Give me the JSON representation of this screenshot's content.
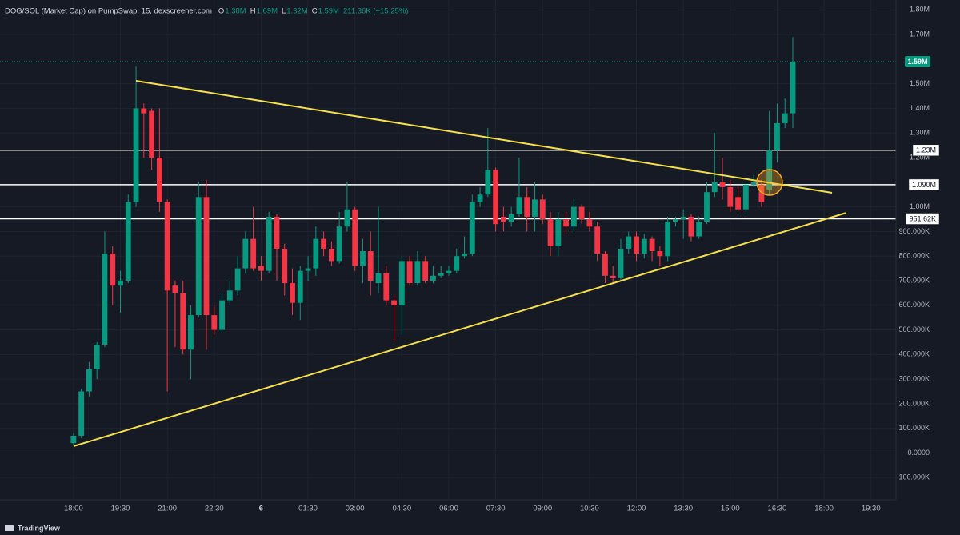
{
  "chart_data": {
    "type": "candlestick",
    "title": "DOG/SOL (Market Cap) on PumpSwap, 15, dexscreener.com",
    "ohlc_labels": [
      {
        "key": "O",
        "value": "1.38M"
      },
      {
        "key": "H",
        "value": "1.69M"
      },
      {
        "key": "L",
        "value": "1.32M"
      },
      {
        "key": "C",
        "value": "1.59M"
      }
    ],
    "change": "211.36K (+15.25%)",
    "up_color": "#089981",
    "down_color": "#f23645",
    "open": [
      40000,
      70000,
      250000,
      340000,
      440000,
      810000,
      680000,
      700000,
      1020000,
      1400000,
      1390000,
      1200000,
      1020000,
      680000,
      650000,
      420000,
      560000,
      1040000,
      560000,
      500000,
      620000,
      660000,
      750000,
      870000,
      760000,
      740000,
      960000,
      830000,
      690000,
      610000,
      740000,
      750000,
      870000,
      830000,
      780000,
      920000,
      990000,
      760000,
      820000,
      690000,
      730000,
      620000,
      600000,
      780000,
      690000,
      780000,
      700000,
      720000,
      730000,
      740000,
      800000,
      810000,
      1020000,
      1050000,
      1150000,
      960000,
      940000,
      970000,
      1040000,
      960000,
      1030000,
      950000,
      840000,
      950000,
      920000,
      1000000,
      950000,
      920000,
      810000,
      720000,
      710000,
      830000,
      880000,
      810000,
      870000,
      820000,
      800000,
      940000,
      950000,
      960000,
      880000,
      940000,
      1060000,
      1100000,
      1080000,
      1040000,
      990000,
      1090000,
      1090000,
      1070000,
      1230000,
      1340000,
      1380000
    ],
    "high": [
      80000,
      260000,
      370000,
      450000,
      900000,
      840000,
      740000,
      1050000,
      1570000,
      1420000,
      1400000,
      1400000,
      1030000,
      700000,
      700000,
      600000,
      1100000,
      1110000,
      600000,
      650000,
      700000,
      800000,
      900000,
      1000000,
      800000,
      980000,
      970000,
      850000,
      750000,
      760000,
      800000,
      920000,
      900000,
      860000,
      980000,
      1100000,
      1000000,
      870000,
      900000,
      1000000,
      760000,
      640000,
      800000,
      800000,
      820000,
      800000,
      760000,
      760000,
      760000,
      830000,
      880000,
      1050000,
      1080000,
      1320000,
      1160000,
      1000000,
      1000000,
      1200000,
      1080000,
      1100000,
      1050000,
      980000,
      980000,
      980000,
      1030000,
      1010000,
      980000,
      940000,
      820000,
      760000,
      870000,
      900000,
      900000,
      890000,
      880000,
      840000,
      960000,
      960000,
      990000,
      970000,
      960000,
      1100000,
      1300000,
      1200000,
      1110000,
      1080000,
      1100000,
      1130000,
      1110000,
      1390000,
      1420000,
      1440000,
      1690000
    ],
    "low": [
      30000,
      60000,
      230000,
      300000,
      430000,
      600000,
      570000,
      690000,
      1000000,
      1200000,
      1150000,
      980000,
      250000,
      430000,
      400000,
      300000,
      550000,
      420000,
      480000,
      490000,
      600000,
      640000,
      730000,
      740000,
      700000,
      730000,
      700000,
      640000,
      560000,
      540000,
      700000,
      720000,
      800000,
      760000,
      770000,
      900000,
      740000,
      690000,
      640000,
      650000,
      600000,
      450000,
      480000,
      680000,
      680000,
      690000,
      690000,
      710000,
      720000,
      730000,
      790000,
      800000,
      1000000,
      1040000,
      900000,
      900000,
      920000,
      960000,
      900000,
      900000,
      930000,
      800000,
      800000,
      890000,
      900000,
      930000,
      900000,
      780000,
      690000,
      690000,
      700000,
      810000,
      780000,
      790000,
      780000,
      760000,
      780000,
      920000,
      870000,
      860000,
      870000,
      930000,
      1040000,
      1030000,
      980000,
      980000,
      970000,
      1080000,
      1000000,
      1050000,
      1180000,
      1320000,
      1320000
    ],
    "close": [
      70000,
      250000,
      340000,
      440000,
      810000,
      680000,
      700000,
      1020000,
      1400000,
      1380000,
      1200000,
      1020000,
      660000,
      650000,
      420000,
      560000,
      1040000,
      560000,
      500000,
      620000,
      660000,
      750000,
      870000,
      750000,
      740000,
      960000,
      830000,
      690000,
      610000,
      740000,
      750000,
      870000,
      830000,
      780000,
      920000,
      990000,
      760000,
      820000,
      700000,
      730000,
      620000,
      600000,
      780000,
      690000,
      780000,
      700000,
      720000,
      730000,
      740000,
      800000,
      810000,
      1020000,
      1050000,
      1150000,
      930000,
      940000,
      970000,
      1040000,
      960000,
      1030000,
      950000,
      840000,
      950000,
      920000,
      1000000,
      950000,
      920000,
      810000,
      720000,
      710000,
      830000,
      880000,
      810000,
      870000,
      820000,
      800000,
      940000,
      950000,
      960000,
      880000,
      940000,
      1060000,
      1100000,
      1080000,
      1000000,
      990000,
      1090000,
      1100000,
      1020000,
      1230000,
      1340000,
      1380000,
      1590000
    ],
    "xlim": [
      -9.4,
      105.2
    ],
    "xticks": [
      {
        "value": 0,
        "label": "18:00"
      },
      {
        "value": 6,
        "label": "19:30"
      },
      {
        "value": 12,
        "label": "21:00"
      },
      {
        "value": 18,
        "label": "22:30"
      },
      {
        "value": 24,
        "label": "6"
      },
      {
        "value": 30,
        "label": "01:30"
      },
      {
        "value": 36,
        "label": "03:00"
      },
      {
        "value": 42,
        "label": "04:30"
      },
      {
        "value": 48,
        "label": "06:00"
      },
      {
        "value": 54,
        "label": "07:30"
      },
      {
        "value": 60,
        "label": "09:00"
      },
      {
        "value": 66,
        "label": "10:30"
      },
      {
        "value": 72,
        "label": "12:00"
      },
      {
        "value": 78,
        "label": "13:30"
      },
      {
        "value": 84,
        "label": "15:00"
      },
      {
        "value": 90,
        "label": "16:30"
      },
      {
        "value": 96,
        "label": "18:00"
      },
      {
        "value": 102,
        "label": "19:30"
      }
    ],
    "ylim": [
      -190000,
      1840000
    ],
    "yticks": [
      {
        "value": 1800000,
        "label": "1.80M"
      },
      {
        "value": 1700000,
        "label": "1.70M"
      },
      {
        "value": 1500000,
        "label": "1.50M"
      },
      {
        "value": 1400000,
        "label": "1.40M"
      },
      {
        "value": 1300000,
        "label": "1.30M"
      },
      {
        "value": 1200000,
        "label": "1.20M"
      },
      {
        "value": 1000000,
        "label": "1.00M"
      },
      {
        "value": 900000,
        "label": "900.000K"
      },
      {
        "value": 800000,
        "label": "800.000K"
      },
      {
        "value": 700000,
        "label": "700.000K"
      },
      {
        "value": 600000,
        "label": "600.000K"
      },
      {
        "value": 500000,
        "label": "500.000K"
      },
      {
        "value": 400000,
        "label": "400.000K"
      },
      {
        "value": 300000,
        "label": "300.000K"
      },
      {
        "value": 200000,
        "label": "200.000K"
      },
      {
        "value": 100000,
        "label": "100.000K"
      },
      {
        "value": 0,
        "label": "0.0000"
      },
      {
        "value": -100000,
        "label": "-100.000K"
      }
    ],
    "grid": true,
    "levels": [
      {
        "value": 1230000,
        "label": "1.23M",
        "color": "#ffffff"
      },
      {
        "value": 1090000,
        "label": "1.090M",
        "color": "#ffffff"
      },
      {
        "value": 951620,
        "label": "951.62K",
        "color": "#ffffff"
      }
    ],
    "last_price": {
      "value": 1590000,
      "label": "1.59M",
      "color": "#089981"
    },
    "branding": "TradingView"
  }
}
